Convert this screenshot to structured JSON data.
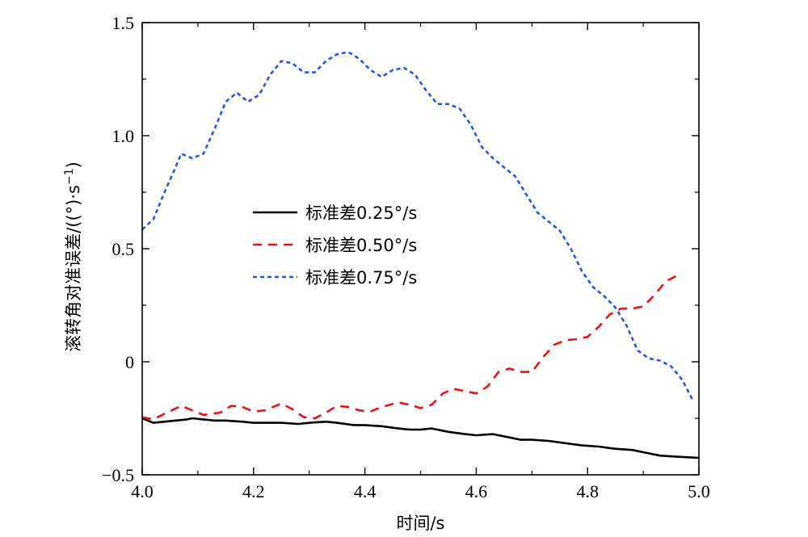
{
  "chart_data": {
    "type": "line",
    "title": "",
    "xlabel": "时间/s",
    "ylabel": "滚转角对准误差/((°)·s",
    "ylabel_superscript": "−1",
    "ylabel_close": ")",
    "xlim": [
      4.0,
      5.0
    ],
    "ylim": [
      -0.5,
      1.5
    ],
    "x_ticks": [
      4.0,
      4.2,
      4.4,
      4.6,
      4.8,
      5.0
    ],
    "x_tick_labels": [
      "4.0",
      "4.2",
      "4.4",
      "4.6",
      "4.8",
      "5.0"
    ],
    "y_ticks": [
      -0.5,
      0,
      0.5,
      1.0,
      1.5
    ],
    "y_tick_labels": [
      "−0.5",
      "0",
      "0.5",
      "1.0",
      "1.5"
    ],
    "grid": false,
    "legend_position": "center-left",
    "series": [
      {
        "name": "标准差0.25°/s",
        "color": "#000000",
        "style": "solid",
        "x": [
          4.0,
          4.02,
          4.04,
          4.06,
          4.08,
          4.09,
          4.11,
          4.13,
          4.15,
          4.18,
          4.2,
          4.22,
          4.25,
          4.28,
          4.3,
          4.33,
          4.35,
          4.38,
          4.4,
          4.43,
          4.46,
          4.48,
          4.5,
          4.52,
          4.55,
          4.58,
          4.6,
          4.63,
          4.65,
          4.68,
          4.7,
          4.73,
          4.76,
          4.79,
          4.82,
          4.85,
          4.88,
          4.9,
          4.93,
          4.96,
          5.0
        ],
        "y": [
          -0.25,
          -0.27,
          -0.265,
          -0.26,
          -0.255,
          -0.25,
          -0.255,
          -0.26,
          -0.26,
          -0.265,
          -0.27,
          -0.27,
          -0.27,
          -0.275,
          -0.27,
          -0.265,
          -0.27,
          -0.28,
          -0.28,
          -0.285,
          -0.295,
          -0.3,
          -0.3,
          -0.295,
          -0.31,
          -0.32,
          -0.325,
          -0.32,
          -0.33,
          -0.345,
          -0.345,
          -0.35,
          -0.36,
          -0.37,
          -0.375,
          -0.385,
          -0.39,
          -0.4,
          -0.415,
          -0.42,
          -0.425
        ]
      },
      {
        "name": "标准差0.50°/s",
        "color": "#ee1111",
        "style": "dashed",
        "x": [
          4.0,
          4.02,
          4.04,
          4.07,
          4.09,
          4.11,
          4.14,
          4.16,
          4.18,
          4.2,
          4.22,
          4.25,
          4.27,
          4.29,
          4.31,
          4.33,
          4.35,
          4.37,
          4.39,
          4.41,
          4.43,
          4.46,
          4.48,
          4.5,
          4.52,
          4.54,
          4.56,
          4.58,
          4.6,
          4.62,
          4.64,
          4.66,
          4.68,
          4.7,
          4.72,
          4.74,
          4.76,
          4.78,
          4.8,
          4.82,
          4.84,
          4.86,
          4.88,
          4.9,
          4.92,
          4.94,
          4.96
        ],
        "y": [
          -0.245,
          -0.255,
          -0.23,
          -0.195,
          -0.215,
          -0.235,
          -0.225,
          -0.195,
          -0.2,
          -0.22,
          -0.215,
          -0.185,
          -0.21,
          -0.245,
          -0.25,
          -0.225,
          -0.195,
          -0.2,
          -0.215,
          -0.22,
          -0.2,
          -0.18,
          -0.19,
          -0.205,
          -0.19,
          -0.14,
          -0.12,
          -0.13,
          -0.14,
          -0.11,
          -0.045,
          -0.03,
          -0.045,
          -0.045,
          0.02,
          0.075,
          0.095,
          0.1,
          0.11,
          0.155,
          0.21,
          0.235,
          0.235,
          0.245,
          0.295,
          0.355,
          0.38
        ]
      },
      {
        "name": "标准差0.75°/s",
        "color": "#2255ee",
        "style": "dotted",
        "x": [
          4.0,
          4.02,
          4.04,
          4.06,
          4.07,
          4.09,
          4.11,
          4.13,
          4.15,
          4.17,
          4.19,
          4.21,
          4.23,
          4.25,
          4.27,
          4.29,
          4.31,
          4.33,
          4.35,
          4.37,
          4.39,
          4.41,
          4.43,
          4.45,
          4.47,
          4.49,
          4.51,
          4.53,
          4.55,
          4.57,
          4.59,
          4.61,
          4.63,
          4.65,
          4.67,
          4.69,
          4.71,
          4.73,
          4.75,
          4.77,
          4.79,
          4.81,
          4.83,
          4.85,
          4.87,
          4.89,
          4.91,
          4.93,
          4.95,
          4.97,
          4.99
        ],
        "y": [
          0.585,
          0.63,
          0.75,
          0.86,
          0.92,
          0.9,
          0.92,
          1.03,
          1.15,
          1.19,
          1.15,
          1.18,
          1.27,
          1.33,
          1.32,
          1.28,
          1.28,
          1.33,
          1.36,
          1.37,
          1.34,
          1.29,
          1.26,
          1.29,
          1.3,
          1.27,
          1.2,
          1.14,
          1.14,
          1.12,
          1.05,
          0.95,
          0.9,
          0.86,
          0.82,
          0.74,
          0.66,
          0.62,
          0.58,
          0.5,
          0.4,
          0.33,
          0.29,
          0.24,
          0.16,
          0.05,
          0.015,
          0.005,
          -0.02,
          -0.08,
          -0.175
        ]
      }
    ]
  }
}
